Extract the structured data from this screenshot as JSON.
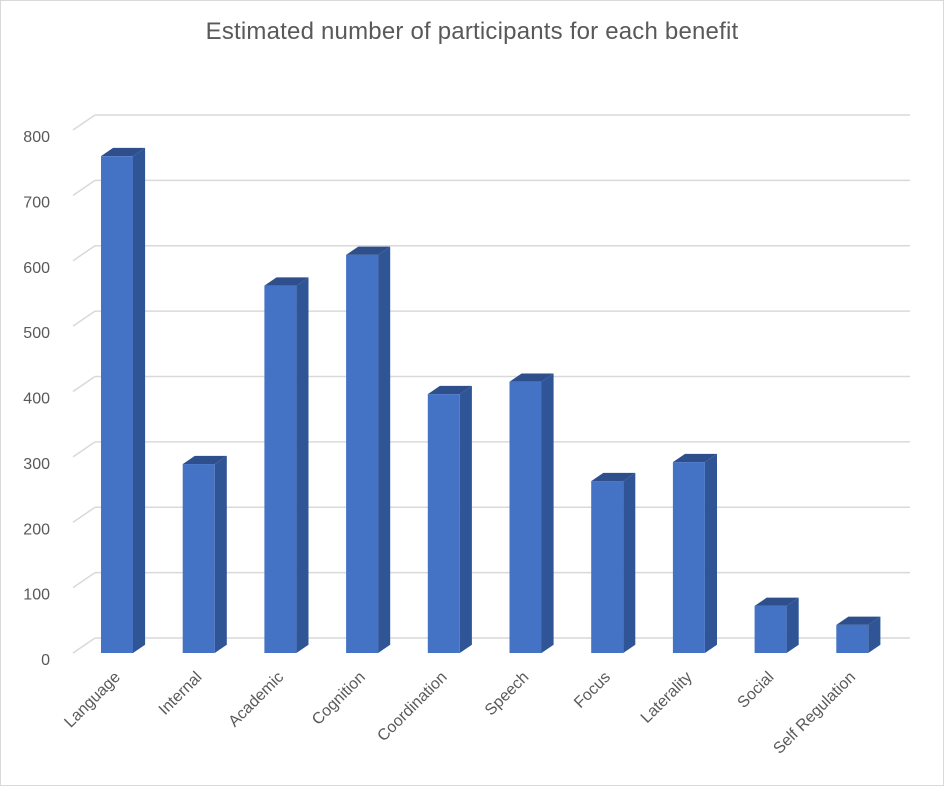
{
  "chart_data": {
    "type": "bar",
    "title": "Estimated number of participants for each benefit",
    "categories": [
      "Language",
      "Internal",
      "Academic",
      "Cognition",
      "Coordination",
      "Speech",
      "Focus",
      "Laterality",
      "Social",
      "Self Regulation"
    ],
    "values": [
      760,
      289,
      562,
      609,
      396,
      415,
      263,
      292,
      72,
      43
    ],
    "ylim": [
      0,
      800
    ],
    "yticks": [
      0,
      100,
      200,
      300,
      400,
      500,
      600,
      700,
      800
    ],
    "grid": true,
    "style": "3d-column",
    "colors": {
      "front": "#4472c4",
      "side": "#2f5597",
      "top": "#2e4f8c",
      "grid": "#d9d9d9",
      "text": "#595959"
    }
  }
}
